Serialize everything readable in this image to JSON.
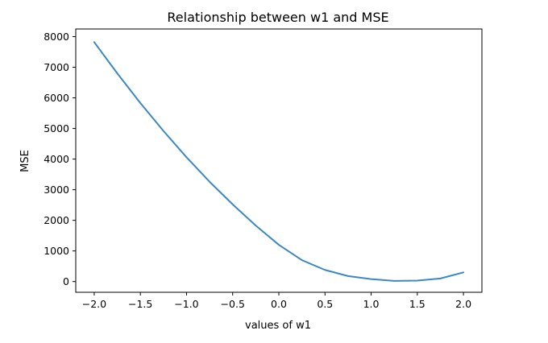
{
  "chart_data": {
    "type": "line",
    "title": "Relationship between w1 and MSE",
    "xlabel": "values of w1",
    "ylabel": "MSE",
    "xlim": [
      -2.2,
      2.2
    ],
    "ylim": [
      -350,
      8250
    ],
    "xticks": [
      -2.0,
      -1.5,
      -1.0,
      -0.5,
      0.0,
      0.5,
      1.0,
      1.5,
      2.0
    ],
    "xtick_labels": [
      "−2.0",
      "−1.5",
      "−1.0",
      "−0.5",
      "0.0",
      "0.5",
      "1.0",
      "1.5",
      "2.0"
    ],
    "yticks": [
      0,
      1000,
      2000,
      3000,
      4000,
      5000,
      6000,
      7000,
      8000
    ],
    "ytick_labels": [
      "0",
      "1000",
      "2000",
      "3000",
      "4000",
      "5000",
      "6000",
      "7000",
      "8000"
    ],
    "grid": false,
    "line_color": "#3b88c4",
    "series": [
      {
        "x": [
          -2.0,
          -1.75,
          -1.5,
          -1.25,
          -1.0,
          -0.75,
          -0.5,
          -0.25,
          0.0,
          0.25,
          0.5,
          0.75,
          1.0,
          1.25,
          1.5,
          1.75,
          2.0
        ],
        "y": [
          7820,
          6800,
          5830,
          4920,
          4060,
          3260,
          2520,
          1830,
          1200,
          700,
          380,
          180,
          80,
          20,
          30,
          100,
          300
        ]
      }
    ]
  }
}
